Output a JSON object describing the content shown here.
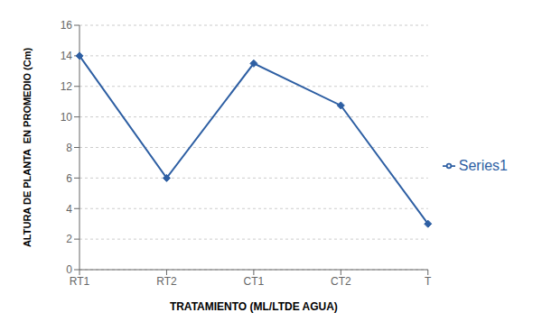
{
  "chart_data": {
    "type": "line",
    "categories": [
      "RT1",
      "RT2",
      "CT1",
      "CT2",
      "T"
    ],
    "series": [
      {
        "name": "Series1",
        "color": "#2E5FA3",
        "values": [
          14.0,
          6.0,
          13.5,
          10.75,
          3.0
        ]
      }
    ],
    "marker": "diamond",
    "xlabel": "TRATAMIENTO (ML/LTDE AGUA)",
    "ylabel": "ALTURA DE PLANTA  EN PROMEDIO (Cm)",
    "ylim": [
      0,
      16
    ],
    "yticks": [
      0,
      2,
      4,
      6,
      8,
      10,
      12,
      14,
      16
    ],
    "grid": true,
    "legend": "right"
  }
}
